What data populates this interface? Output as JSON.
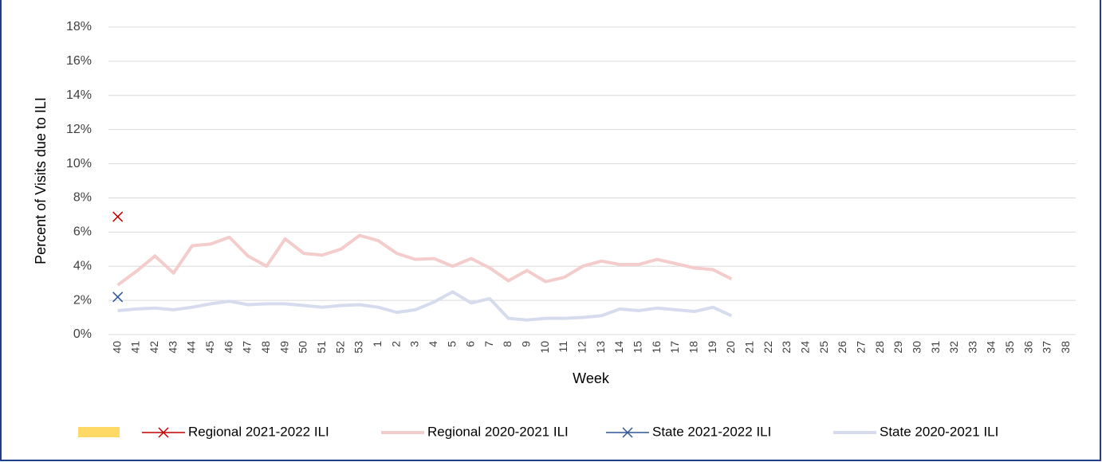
{
  "chart_data": {
    "type": "line",
    "y_axis_title": "Percent of Visits due to ILI",
    "x_axis_title": "Week",
    "categories": [
      "40",
      "41",
      "42",
      "43",
      "44",
      "45",
      "46",
      "47",
      "48",
      "49",
      "50",
      "51",
      "52",
      "53",
      "1",
      "2",
      "3",
      "4",
      "5",
      "6",
      "7",
      "8",
      "9",
      "10",
      "11",
      "12",
      "13",
      "14",
      "15",
      "16",
      "17",
      "18",
      "19",
      "20",
      "21",
      "22",
      "23",
      "24",
      "25",
      "26",
      "27",
      "28",
      "29",
      "30",
      "31",
      "32",
      "33",
      "34",
      "35",
      "36",
      "37",
      "38"
    ],
    "ylim": [
      0,
      18
    ],
    "yticks": [
      {
        "value": 0,
        "label": "0%"
      },
      {
        "value": 2,
        "label": "2%"
      },
      {
        "value": 4,
        "label": "4%"
      },
      {
        "value": 6,
        "label": "6%"
      },
      {
        "value": 8,
        "label": "8%"
      },
      {
        "value": 10,
        "label": "10%"
      },
      {
        "value": 12,
        "label": "12%"
      },
      {
        "value": 14,
        "label": "14%"
      },
      {
        "value": 16,
        "label": "16%"
      },
      {
        "value": 18,
        "label": "18%"
      }
    ],
    "grid": true,
    "legend": "bottom",
    "series": [
      {
        "name": "Regional 2021-2022 ILI",
        "color": "#c00000",
        "marker": "x",
        "values": [
          6.9,
          null,
          null,
          null,
          null,
          null,
          null,
          null,
          null,
          null,
          null,
          null,
          null,
          null,
          null,
          null,
          null,
          null,
          null,
          null,
          null,
          null,
          null,
          null,
          null,
          null,
          null,
          null,
          null,
          null,
          null,
          null,
          null,
          null,
          null,
          null,
          null,
          null,
          null,
          null,
          null,
          null,
          null,
          null,
          null,
          null,
          null,
          null,
          null,
          null,
          null,
          null
        ]
      },
      {
        "name": "Regional 2020-2021 ILI",
        "color": "#f4cccc",
        "values": [
          2.9,
          3.7,
          4.6,
          3.6,
          5.2,
          5.3,
          5.7,
          4.6,
          4.0,
          5.6,
          4.75,
          4.65,
          5.0,
          5.8,
          5.5,
          4.75,
          4.4,
          4.45,
          4.0,
          4.45,
          3.9,
          3.15,
          3.75,
          3.1,
          3.35,
          4.0,
          4.3,
          4.1,
          4.1,
          4.4,
          4.15,
          3.9,
          3.8,
          3.25,
          null,
          null,
          null,
          null,
          null,
          null,
          null,
          null,
          null,
          null,
          null,
          null,
          null,
          null,
          null,
          null,
          null,
          null
        ]
      },
      {
        "name": "State 2021-2022 ILI",
        "color": "#2f5597",
        "marker": "x",
        "values": [
          2.2,
          null,
          null,
          null,
          null,
          null,
          null,
          null,
          null,
          null,
          null,
          null,
          null,
          null,
          null,
          null,
          null,
          null,
          null,
          null,
          null,
          null,
          null,
          null,
          null,
          null,
          null,
          null,
          null,
          null,
          null,
          null,
          null,
          null,
          null,
          null,
          null,
          null,
          null,
          null,
          null,
          null,
          null,
          null,
          null,
          null,
          null,
          null,
          null,
          null,
          null,
          null
        ]
      },
      {
        "name": "State 2020-2021 ILI",
        "color": "#d6dcee",
        "values": [
          1.4,
          1.5,
          1.55,
          1.45,
          1.6,
          1.8,
          1.95,
          1.75,
          1.8,
          1.8,
          1.7,
          1.6,
          1.7,
          1.75,
          1.6,
          1.3,
          1.45,
          1.9,
          2.5,
          1.85,
          2.1,
          0.95,
          0.85,
          0.95,
          0.95,
          1.0,
          1.1,
          1.5,
          1.4,
          1.55,
          1.45,
          1.35,
          1.6,
          1.1,
          null,
          null,
          null,
          null,
          null,
          null,
          null,
          null,
          null,
          null,
          null,
          null,
          null,
          null,
          null,
          null,
          null,
          null
        ]
      }
    ]
  }
}
